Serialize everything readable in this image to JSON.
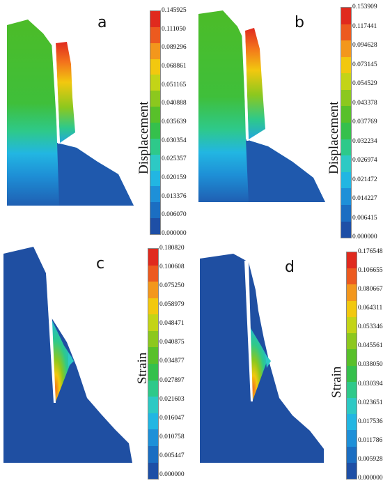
{
  "colors": {
    "ramp": [
      "#1e4fa6",
      "#1b6ec2",
      "#1e90d8",
      "#22b6e2",
      "#2dc9c4",
      "#2ec98a",
      "#35c04c",
      "#58c02a",
      "#8cc81e",
      "#c3d417",
      "#f2c80f",
      "#f3971c",
      "#ec5a1f",
      "#e02a1e"
    ],
    "background_field": "#1f4fa2",
    "crack": "#ffffff"
  },
  "panels": [
    {
      "letter": "a",
      "quantity": "Displacement",
      "ticks": [
        "0.145925",
        "0.111050",
        "0.089296",
        "0.068861",
        "0.051165",
        "0.040888",
        "0.035639",
        "0.030354",
        "0.025357",
        "0.020159",
        "0.013376",
        "0.006070",
        "0.000000"
      ]
    },
    {
      "letter": "b",
      "quantity": "Displacement",
      "ticks": [
        "0.153909",
        "0.117441",
        "0.094628",
        "0.073145",
        "0.054529",
        "0.043378",
        "0.037769",
        "0.032234",
        "0.026974",
        "0.021472",
        "0.014227",
        "0.006415",
        "0.000000"
      ]
    },
    {
      "letter": "c",
      "quantity": "Strain",
      "ticks": [
        "0.180820",
        "0.100608",
        "0.075250",
        "0.058979",
        "0.048471",
        "0.040875",
        "0.034877",
        "0.027897",
        "0.021603",
        "0.016047",
        "0.010758",
        "0.005447",
        "0.000000"
      ]
    },
    {
      "letter": "d",
      "quantity": "Strain",
      "ticks": [
        "0.176548",
        "0.106655",
        "0.080667",
        "0.064311",
        "0.053346",
        "0.045561",
        "0.038050",
        "0.030394",
        "0.023651",
        "0.017536",
        "0.011786",
        "0.005928",
        "0.000000"
      ]
    }
  ]
}
